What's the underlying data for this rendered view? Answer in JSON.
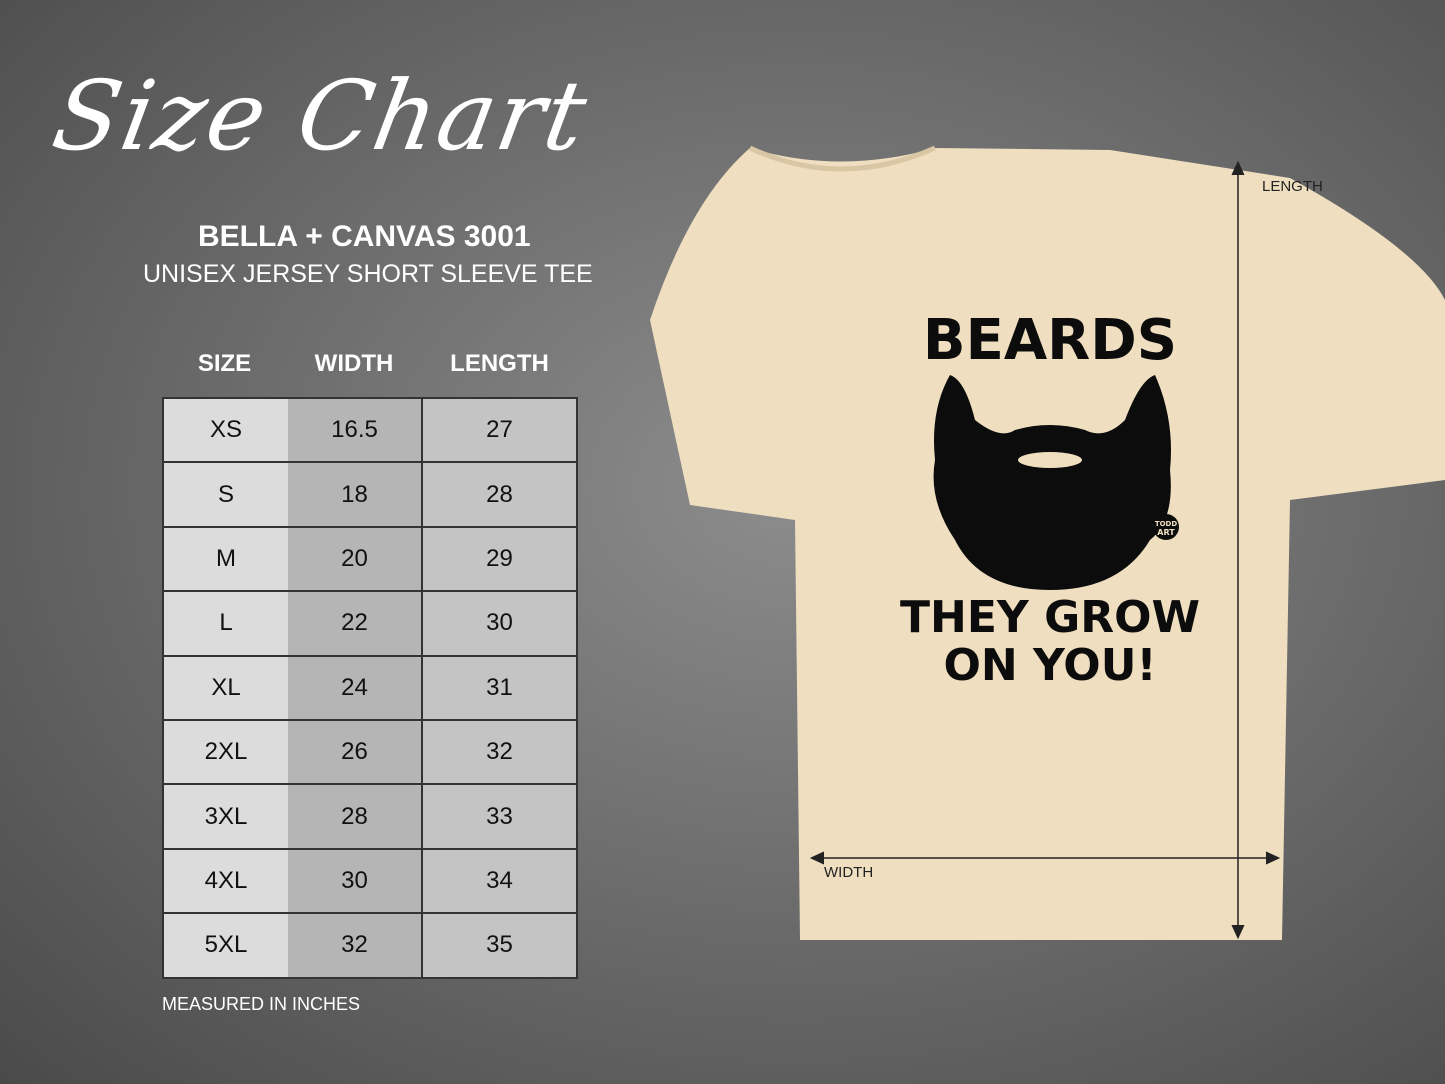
{
  "title": "Size Chart",
  "product": "BELLA + CANVAS 3001",
  "description": "UNISEX JERSEY SHORT SLEEVE TEE",
  "table": {
    "headers": [
      "SIZE",
      "WIDTH",
      "LENGTH"
    ],
    "rows": [
      [
        "XS",
        "16.5",
        "27"
      ],
      [
        "S",
        "18",
        "28"
      ],
      [
        "M",
        "20",
        "29"
      ],
      [
        "L",
        "22",
        "30"
      ],
      [
        "XL",
        "24",
        "31"
      ],
      [
        "2XL",
        "26",
        "32"
      ],
      [
        "3XL",
        "28",
        "33"
      ],
      [
        "4XL",
        "30",
        "34"
      ],
      [
        "5XL",
        "32",
        "35"
      ]
    ]
  },
  "note": "MEASURED IN INCHES",
  "shirt": {
    "color": "#efdfc0",
    "design_top": "BEARDS",
    "design_bottom_1": "THEY GROW",
    "design_bottom_2": "ON YOU!",
    "logo": "TODD ART"
  },
  "measure": {
    "length_label": "LENGTH",
    "width_label": "WIDTH"
  }
}
